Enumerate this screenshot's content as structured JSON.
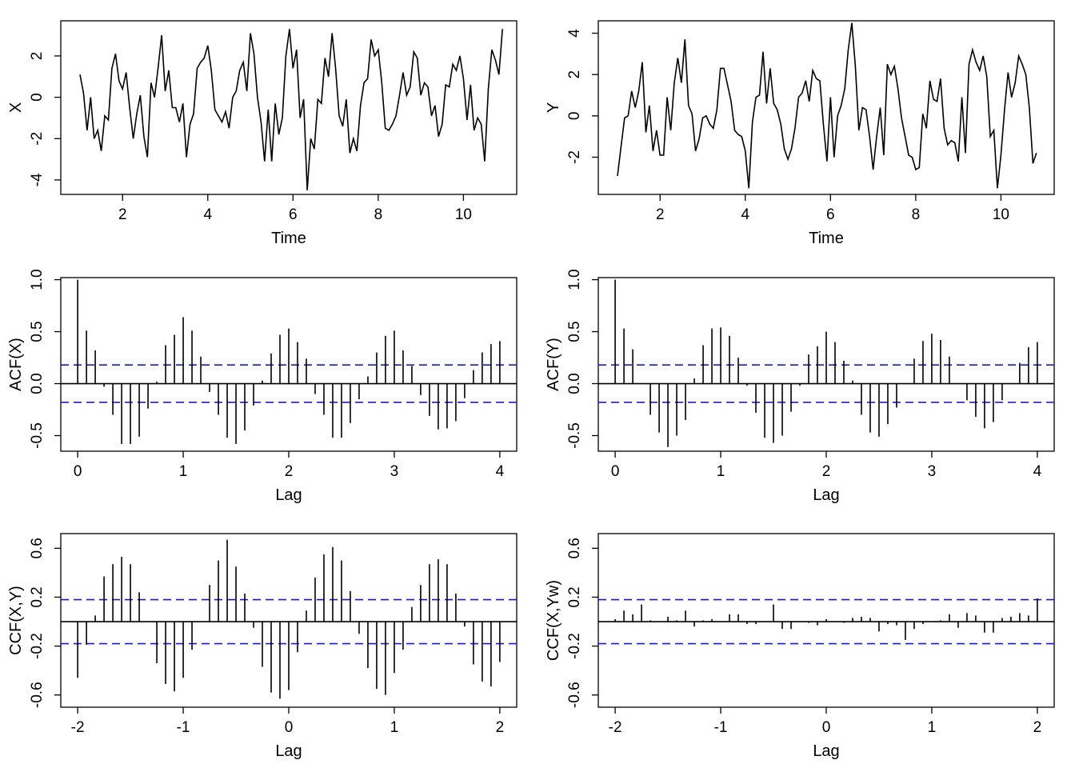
{
  "chart_data": [
    {
      "id": "ts-x",
      "type": "line",
      "xlabel": "Time",
      "ylabel": "X",
      "xlim": [
        0.55,
        11.25
      ],
      "ylim": [
        -4.7,
        3.7
      ],
      "xticks": [
        2,
        4,
        6,
        8,
        10
      ],
      "yticks": [
        -4,
        -2,
        0,
        2
      ],
      "series": [
        {
          "start": 1.0,
          "step": 0.0833333,
          "values": [
            1.1,
            0.2,
            -1.6,
            0.0,
            -2.0,
            -1.6,
            -2.6,
            -0.9,
            -1.1,
            1.4,
            2.1,
            0.8,
            0.4,
            1.2,
            -0.5,
            -2.0,
            -0.8,
            0.1,
            -1.9,
            -2.9,
            0.7,
            0.0,
            1.4,
            3.0,
            0.3,
            1.3,
            -0.5,
            -0.5,
            -1.2,
            -0.3,
            -2.9,
            -1.3,
            -0.8,
            1.4,
            1.7,
            1.9,
            2.5,
            1.3,
            -0.6,
            -0.9,
            -1.2,
            -0.7,
            -1.5,
            0.0,
            0.3,
            1.3,
            1.7,
            0.3,
            3.1,
            2.1,
            0.0,
            -1.2,
            -3.1,
            -0.6,
            -3.1,
            -0.3,
            -1.8,
            -1.0,
            2.0,
            3.3,
            1.4,
            2.3,
            -1.0,
            -0.1,
            -4.5,
            -2.0,
            -2.5,
            -0.1,
            -0.3,
            1.9,
            1.0,
            3.1,
            1.4,
            -0.9,
            -1.4,
            -0.1,
            -2.7,
            -2.0,
            -2.6,
            -0.4,
            0.7,
            0.9,
            2.8,
            2.0,
            2.3,
            0.7,
            -1.5,
            -1.6,
            -1.3,
            -0.9,
            0.1,
            1.2,
            0.1,
            0.5,
            2.2,
            1.9,
            0.1,
            0.7,
            0.5,
            -0.9,
            -0.4,
            -1.9,
            -1.3,
            0.6,
            0.5,
            1.6,
            1.3,
            2.0,
            0.9,
            -1.1,
            0.6,
            -1.6,
            -1.0,
            -1.3,
            -3.1,
            0.4,
            2.3,
            1.8,
            1.1,
            3.3
          ]
        }
      ]
    },
    {
      "id": "ts-y",
      "type": "line",
      "xlabel": "Time",
      "ylabel": "Y",
      "xlim": [
        0.55,
        11.25
      ],
      "ylim": [
        -3.8,
        4.6
      ],
      "xticks": [
        2,
        4,
        6,
        8,
        10
      ],
      "yticks": [
        -2,
        0,
        2,
        4
      ],
      "series": [
        {
          "start": 1.0,
          "step": 0.0833333,
          "values": [
            -2.9,
            -1.5,
            -0.1,
            0.0,
            1.2,
            0.4,
            1.2,
            2.6,
            -0.8,
            0.5,
            -1.7,
            -0.7,
            -1.9,
            -1.9,
            0.9,
            -0.7,
            1.6,
            2.8,
            1.6,
            3.7,
            0.5,
            0.1,
            -1.7,
            -1.1,
            -0.1,
            0.0,
            -0.4,
            -0.6,
            0.3,
            2.3,
            2.3,
            1.5,
            0.7,
            -0.7,
            -0.9,
            -1.0,
            -1.7,
            -3.5,
            -0.3,
            0.9,
            1.0,
            3.1,
            0.6,
            2.3,
            0.6,
            0.3,
            -0.4,
            -1.6,
            -2.1,
            -1.6,
            -0.6,
            0.9,
            1.1,
            1.7,
            0.7,
            2.2,
            1.8,
            1.7,
            -0.4,
            -2.2,
            0.9,
            -2.0,
            0.0,
            0.5,
            1.3,
            3.2,
            4.5,
            2.4,
            -0.7,
            0.4,
            0.3,
            -1.0,
            -2.6,
            -1.0,
            0.4,
            -1.9,
            2.5,
            2.0,
            2.4,
            1.3,
            -0.1,
            -1.0,
            -1.9,
            -2.0,
            -2.6,
            -2.5,
            0.1,
            -0.6,
            1.7,
            0.8,
            0.7,
            1.8,
            -0.6,
            -1.4,
            -1.2,
            -1.3,
            -2.2,
            0.9,
            -1.8,
            2.5,
            3.2,
            2.6,
            2.2,
            2.9,
            1.9,
            -1.0,
            -0.7,
            -3.5,
            -1.9,
            0.3,
            2.1,
            0.9,
            1.6,
            2.9,
            2.5,
            2.0,
            0.4,
            -2.3,
            -1.8
          ]
        }
      ]
    },
    {
      "id": "acf-x",
      "type": "bar",
      "xlabel": "Lag",
      "ylabel": "ACF(X)",
      "xlim": [
        -0.16,
        4.16
      ],
      "ylim": [
        -0.65,
        1.02
      ],
      "xticks": [
        0,
        1,
        2,
        3,
        4
      ],
      "yticks": [
        -0.5,
        0.0,
        0.5,
        1.0
      ],
      "conf": 0.18,
      "lag_step": 0.0833333,
      "values": [
        1.0,
        0.51,
        0.32,
        -0.03,
        -0.3,
        -0.58,
        -0.58,
        -0.51,
        -0.24,
        0.02,
        0.37,
        0.47,
        0.64,
        0.51,
        0.26,
        -0.08,
        -0.3,
        -0.52,
        -0.58,
        -0.45,
        -0.21,
        0.03,
        0.29,
        0.47,
        0.53,
        0.4,
        0.24,
        -0.1,
        -0.3,
        -0.52,
        -0.52,
        -0.38,
        -0.15,
        0.07,
        0.3,
        0.46,
        0.51,
        0.32,
        0.17,
        -0.11,
        -0.31,
        -0.44,
        -0.43,
        -0.36,
        -0.14,
        0.13,
        0.3,
        0.38,
        0.41
      ]
    },
    {
      "id": "acf-y",
      "type": "bar",
      "xlabel": "Lag",
      "ylabel": "ACF(Y)",
      "xlim": [
        -0.16,
        4.16
      ],
      "ylim": [
        -0.65,
        1.02
      ],
      "xticks": [
        0,
        1,
        2,
        3,
        4
      ],
      "yticks": [
        -0.5,
        0.0,
        0.5,
        1.0
      ],
      "conf": 0.18,
      "lag_step": 0.0833333,
      "values": [
        1.0,
        0.53,
        0.33,
        0.0,
        -0.3,
        -0.47,
        -0.61,
        -0.5,
        -0.35,
        0.05,
        0.37,
        0.53,
        0.54,
        0.46,
        0.25,
        -0.02,
        -0.28,
        -0.52,
        -0.57,
        -0.5,
        -0.27,
        -0.02,
        0.28,
        0.36,
        0.5,
        0.4,
        0.22,
        0.03,
        -0.3,
        -0.47,
        -0.51,
        -0.39,
        -0.23,
        0.0,
        0.24,
        0.41,
        0.48,
        0.42,
        0.26,
        0.0,
        -0.16,
        -0.32,
        -0.43,
        -0.37,
        -0.16,
        0.0,
        0.2,
        0.35,
        0.4
      ]
    },
    {
      "id": "ccf-xy",
      "type": "bar",
      "xlabel": "Lag",
      "ylabel": "CCF(X,Y)",
      "xlim": [
        -2.16,
        2.16
      ],
      "ylim": [
        -0.7,
        0.72
      ],
      "xticks": [
        -2,
        -1,
        0,
        1,
        2
      ],
      "yticks": [
        -0.6,
        -0.2,
        0.2,
        0.6
      ],
      "conf": 0.18,
      "lag_step": 0.0833333,
      "lag_start": -2.0,
      "values": [
        -0.46,
        -0.19,
        0.05,
        0.37,
        0.47,
        0.53,
        0.47,
        0.24,
        0.0,
        -0.34,
        -0.51,
        -0.57,
        -0.46,
        -0.23,
        0.0,
        0.3,
        0.5,
        0.67,
        0.45,
        0.23,
        -0.05,
        -0.37,
        -0.58,
        -0.63,
        -0.56,
        -0.25,
        0.09,
        0.36,
        0.55,
        0.61,
        0.5,
        0.25,
        -0.1,
        -0.38,
        -0.55,
        -0.6,
        -0.42,
        -0.23,
        0.12,
        0.3,
        0.47,
        0.51,
        0.47,
        0.23,
        -0.04,
        -0.35,
        -0.49,
        -0.53,
        -0.33
      ]
    },
    {
      "id": "ccf-xyw",
      "type": "bar",
      "xlabel": "Lag",
      "ylabel": "CCF(X,Yw)",
      "xlim": [
        -2.16,
        2.16
      ],
      "ylim": [
        -0.7,
        0.72
      ],
      "xticks": [
        -2,
        -1,
        0,
        1,
        2
      ],
      "yticks": [
        -0.6,
        -0.2,
        0.2,
        0.6
      ],
      "conf": 0.18,
      "lag_step": 0.0833333,
      "lag_start": -2.0,
      "values": [
        0.02,
        0.09,
        0.06,
        0.14,
        0.01,
        0.0,
        0.04,
        0.01,
        0.09,
        -0.04,
        0.01,
        0.02,
        0.0,
        0.06,
        0.06,
        -0.02,
        -0.02,
        0.0,
        0.14,
        -0.06,
        -0.06,
        0.0,
        -0.01,
        -0.03,
        0.02,
        0.0,
        -0.01,
        0.03,
        0.04,
        0.03,
        -0.08,
        -0.02,
        -0.03,
        -0.15,
        -0.06,
        -0.02,
        0.0,
        0.01,
        0.06,
        -0.05,
        0.07,
        0.05,
        -0.09,
        -0.09,
        0.03,
        0.04,
        0.07,
        0.05,
        0.19
      ]
    }
  ]
}
